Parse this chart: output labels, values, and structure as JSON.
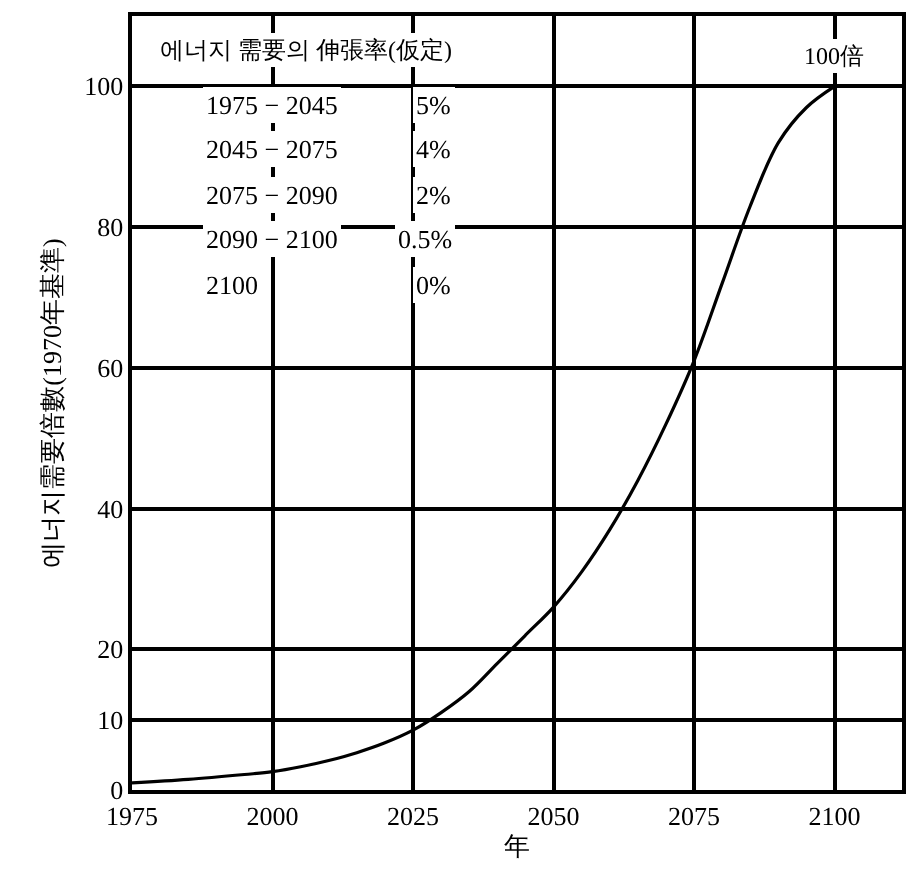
{
  "chart_data": {
    "type": "line",
    "xlabel": "年",
    "ylabel": "에너지需要倍數(1970年基準)",
    "x": [
      1975,
      1985,
      1995,
      2000,
      2005,
      2010,
      2015,
      2020,
      2025,
      2030,
      2035,
      2040,
      2045,
      2050,
      2055,
      2060,
      2065,
      2070,
      2075,
      2080,
      2085,
      2090,
      2095,
      2100
    ],
    "series": [
      {
        "color": "#000000",
        "values": [
          1,
          1.5,
          2.2,
          2.6,
          3.3,
          4.2,
          5.3,
          6.7,
          8.5,
          11,
          14,
          18,
          22,
          26,
          31,
          37,
          44,
          52,
          61,
          72,
          83,
          92,
          97,
          100
        ]
      }
    ],
    "xlim": [
      1975,
      2112
    ],
    "ylim": [
      0,
      110
    ],
    "xticks": [
      1975,
      2000,
      2025,
      2050,
      2075,
      2100
    ],
    "yticks": [
      0,
      10,
      20,
      40,
      60,
      80,
      100
    ],
    "grid": true,
    "marker": "none",
    "line_style": "solid",
    "annotations": [
      "에너지 需要의 伸張率(仮定)",
      "1975 − 2045",
      "5%",
      "2045 − 2075",
      "4%",
      "2075 − 2090",
      "2%",
      "2090 − 2100",
      "0.5%",
      "2100",
      "0%",
      {
        "text": "100倍",
        "x": 2100,
        "y": 100
      }
    ]
  }
}
